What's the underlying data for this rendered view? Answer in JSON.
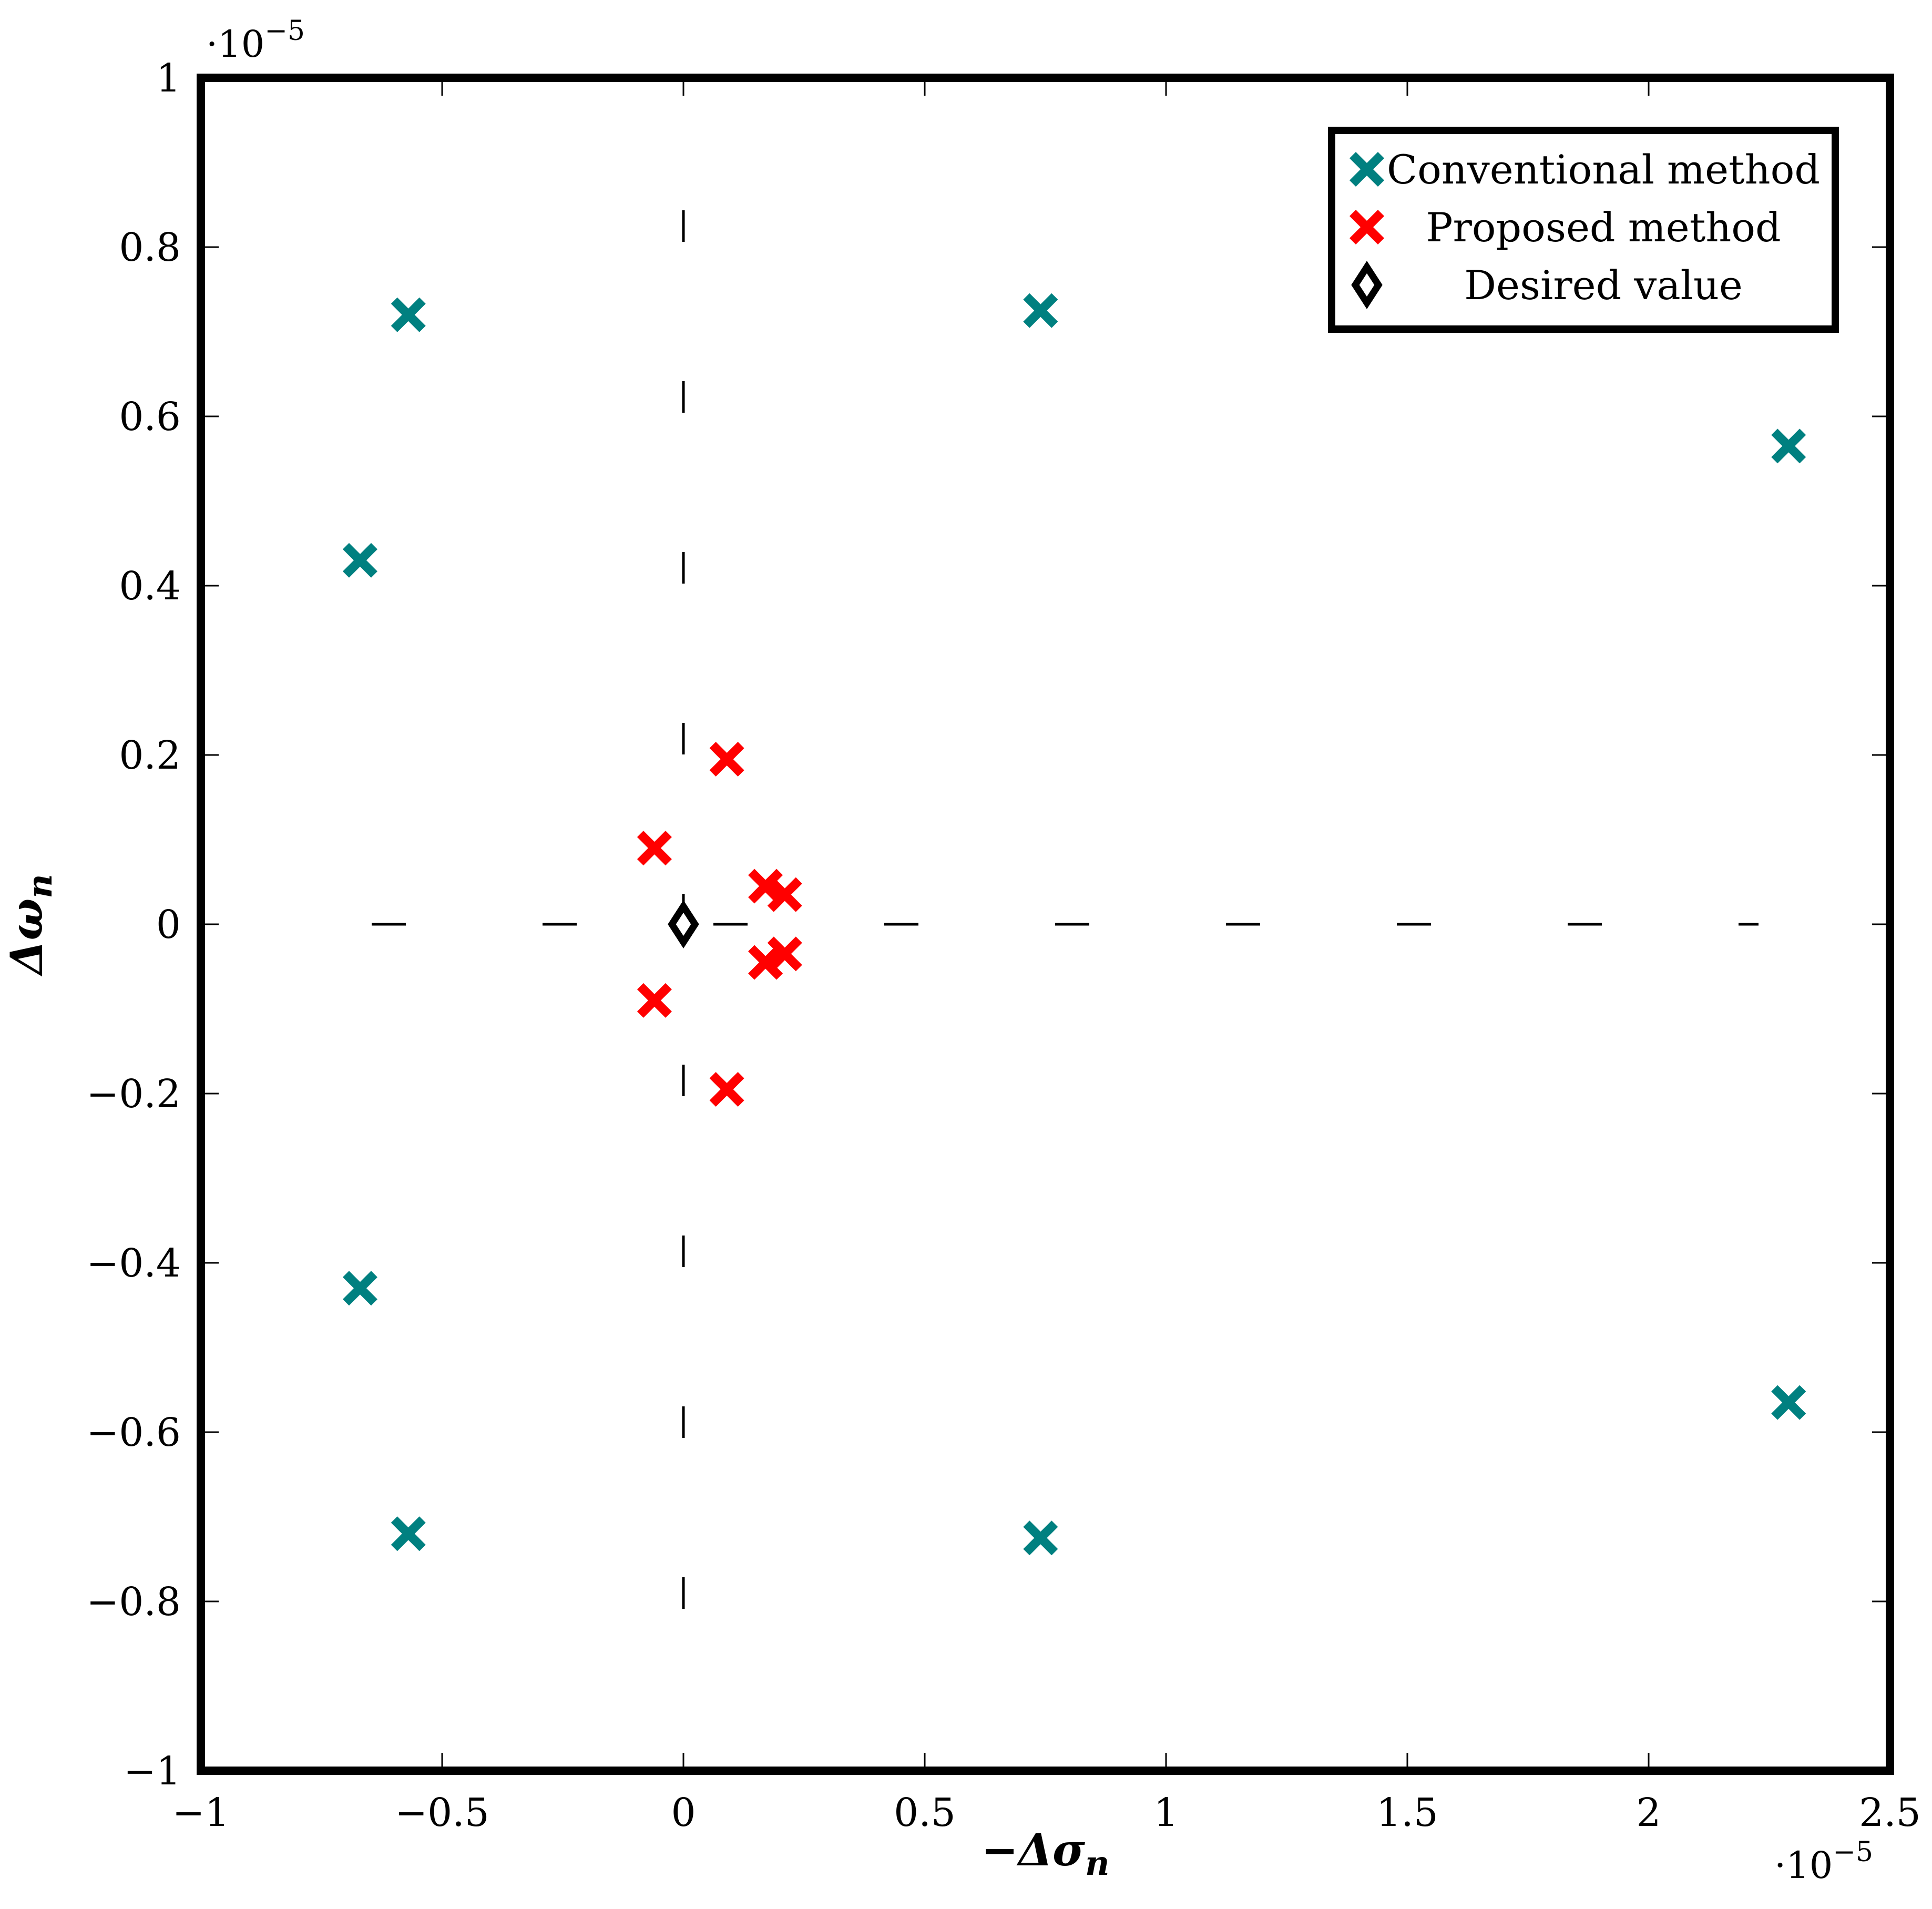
{
  "chart_data": {
    "type": "scatter",
    "xlabel": "−Δσ",
    "xlabel_sub": "n",
    "ylabel": "Δω",
    "ylabel_sub": "n",
    "x_multiplier": "·10",
    "x_multiplier_exp": "−5",
    "y_multiplier": "·10",
    "y_multiplier_exp": "−5",
    "xlim": [
      -1,
      2.5
    ],
    "ylim": [
      -1,
      1
    ],
    "xticks": [
      -1,
      -0.5,
      0,
      0.5,
      1,
      1.5,
      2,
      2.5
    ],
    "xtick_labels": [
      "−1",
      "−0.5",
      "0",
      "0.5",
      "1",
      "1.5",
      "2",
      "2.5"
    ],
    "yticks": [
      -1,
      -0.8,
      -0.6,
      -0.4,
      -0.2,
      0,
      0.2,
      0.4,
      0.6,
      0.8,
      1
    ],
    "ytick_labels": [
      "−1",
      "−0.8",
      "−0.6",
      "−0.4",
      "−0.2",
      "0",
      "0.2",
      "0.4",
      "0.6",
      "0.8",
      "1"
    ],
    "grid": false,
    "reference_lines": [
      "x = 0 (dashed)",
      "y = 0 (dashed)"
    ],
    "legend_position": "top-right",
    "series": [
      {
        "name": "Conventional method",
        "marker": "x",
        "color": "#008080",
        "points": [
          {
            "x": -0.57,
            "y": 0.72
          },
          {
            "x": -0.67,
            "y": 0.43
          },
          {
            "x": -0.67,
            "y": -0.43
          },
          {
            "x": -0.57,
            "y": -0.72
          },
          {
            "x": 0.74,
            "y": 0.725
          },
          {
            "x": 0.74,
            "y": -0.725
          },
          {
            "x": 2.29,
            "y": 0.565
          },
          {
            "x": 2.29,
            "y": -0.565
          }
        ]
      },
      {
        "name": "Proposed method",
        "marker": "x",
        "color": "#ff0000",
        "points": [
          {
            "x": 0.09,
            "y": 0.195
          },
          {
            "x": 0.09,
            "y": -0.195
          },
          {
            "x": -0.06,
            "y": 0.09
          },
          {
            "x": -0.06,
            "y": -0.09
          },
          {
            "x": 0.17,
            "y": 0.045
          },
          {
            "x": 0.17,
            "y": -0.045
          },
          {
            "x": 0.21,
            "y": 0.035
          },
          {
            "x": 0.21,
            "y": -0.035
          }
        ]
      },
      {
        "name": "Desired value",
        "marker": "diamond",
        "color": "#000000",
        "points": [
          {
            "x": 0,
            "y": 0
          }
        ]
      }
    ]
  }
}
